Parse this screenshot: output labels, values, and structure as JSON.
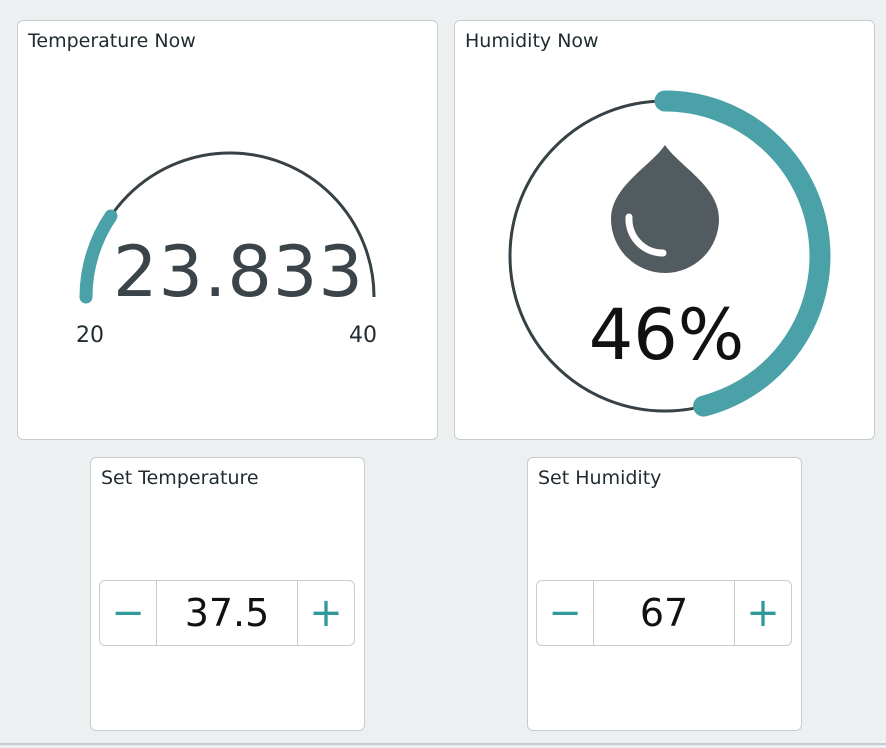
{
  "temperature_now": {
    "title": "Temperature Now",
    "value": "23.833",
    "min": "20",
    "max": "40",
    "fill_fraction": 0.19
  },
  "humidity_now": {
    "title": "Humidity Now",
    "value": "46%",
    "fill_fraction": 0.46,
    "icon": "water-drop-icon"
  },
  "set_temperature": {
    "title": "Set Temperature",
    "value": "37.5",
    "minus_label": "−",
    "plus_label": "+"
  },
  "set_humidity": {
    "title": "Set Humidity",
    "value": "67",
    "minus_label": "−",
    "plus_label": "+"
  },
  "colors": {
    "accent": "#4aa1a8",
    "track": "#374146",
    "icon": "#525b5f",
    "background": "#ecf0f1"
  }
}
